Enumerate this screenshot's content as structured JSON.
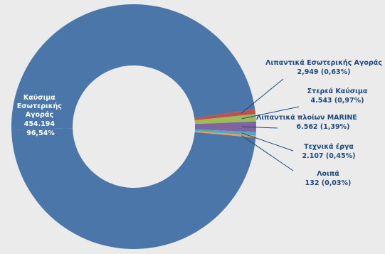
{
  "chart_data": {
    "type": "pie",
    "donut": true,
    "slices": [
      {
        "name": "Καύσιμα Εσωτερικής Αγοράς",
        "value_text": "454.194",
        "percent": 96.54,
        "percent_text": "96,54%",
        "color": "#4a76aa",
        "label_color": "#ffffff"
      },
      {
        "name": "Λιπαντικά Εσωτερικής Αγοράς",
        "value_text": "2,949",
        "percent": 0.63,
        "percent_text": "(0,63%)",
        "color": "#c0504d",
        "label_color": "#1f497d"
      },
      {
        "name": "Στερεά Καύσιμα",
        "value_text": "4.543",
        "percent": 0.97,
        "percent_text": "(0,97%)",
        "color": "#9bbb59",
        "label_color": "#1f497d"
      },
      {
        "name": "Λιπαντικά πλοίων MARINE",
        "value_text": "6.562",
        "percent": 1.39,
        "percent_text": "(1,39%)",
        "color": "#8064a2",
        "label_color": "#1f497d"
      },
      {
        "name": "Τεχνικά έργα",
        "value_text": "2.107",
        "percent": 0.45,
        "percent_text": "(0,45%)",
        "color": "#4bacc6",
        "label_color": "#1f497d"
      },
      {
        "name": "Λοιπά",
        "value_text": "132",
        "percent": 0.03,
        "percent_text": "(0,03%)",
        "color": "#f79646",
        "label_color": "#1f497d"
      }
    ],
    "leader_line_color": "#1f497d"
  }
}
